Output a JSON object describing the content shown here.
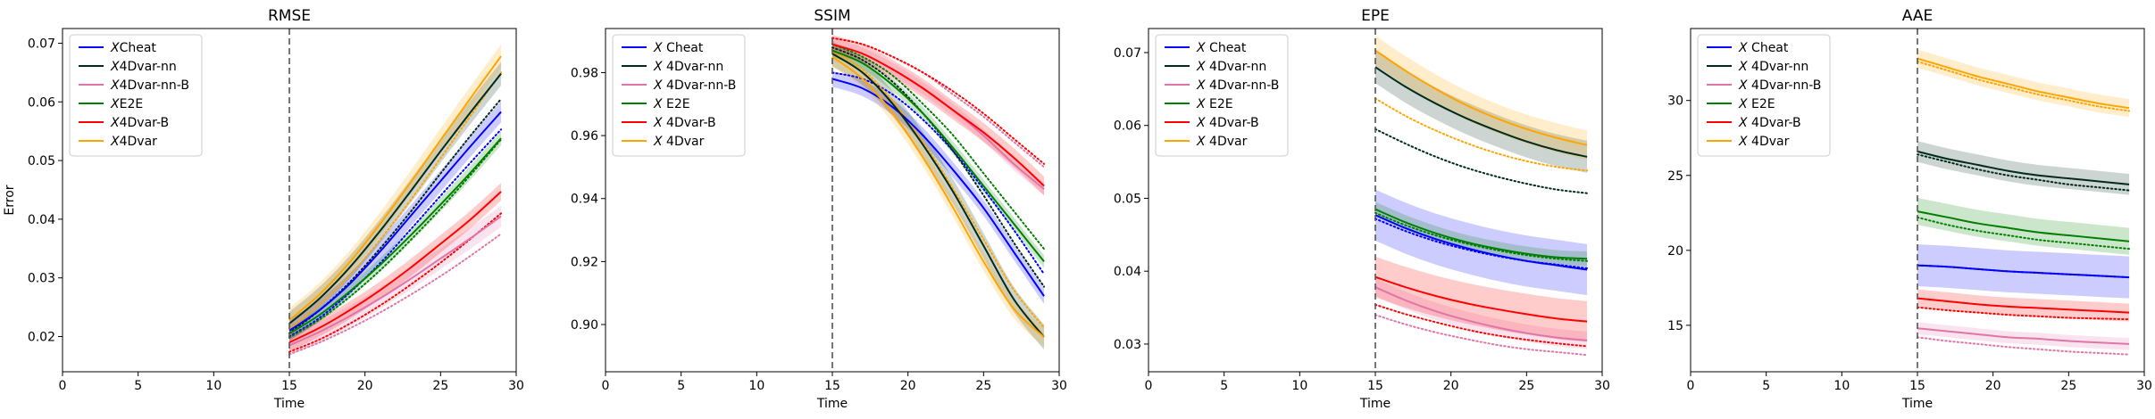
{
  "chart_data": [
    {
      "type": "line",
      "title": "RMSE",
      "xlabel": "Time",
      "ylabel": "Error",
      "xlim": [
        0,
        30
      ],
      "ylim": [
        0.014,
        0.0725
      ],
      "xticks": [
        0,
        5,
        10,
        15,
        20,
        25,
        30
      ],
      "yticks": [
        0.02,
        0.03,
        0.04,
        0.05,
        0.06,
        0.07
      ],
      "yprecision": 2,
      "vline": 15,
      "legend_position": "top-left",
      "x": [
        15,
        17,
        19,
        21,
        23,
        25,
        27,
        29
      ],
      "series": [
        {
          "name": "XCheat",
          "label_parts": [
            "X",
            "Cheat"
          ],
          "color": "#0000ff",
          "values": [
            0.021,
            0.0245,
            0.029,
            0.0345,
            0.0405,
            0.0465,
            0.0525,
            0.0583
          ],
          "band": 0.0018,
          "dotted": [
            0.02,
            0.0232,
            0.0275,
            0.0325,
            0.0382,
            0.044,
            0.0497,
            0.0553
          ]
        },
        {
          "name": "X4Dvar-nn",
          "label_parts": [
            "X",
            "4Dvar-nn"
          ],
          "color": "#002b1b",
          "values": [
            0.0222,
            0.0265,
            0.0318,
            0.038,
            0.0447,
            0.0516,
            0.0583,
            0.0648
          ],
          "band": 0.002,
          "dotted": [
            0.0206,
            0.0245,
            0.0293,
            0.035,
            0.0412,
            0.0478,
            0.0543,
            0.0605
          ]
        },
        {
          "name": "X4Dvar-nn-B",
          "label_parts": [
            "X",
            "4Dvar-nn-B"
          ],
          "color": "#e075a8",
          "values": [
            0.0185,
            0.0208,
            0.0235,
            0.0265,
            0.0298,
            0.0333,
            0.0368,
            0.0405
          ],
          "band": 0.0018,
          "dotted": [
            0.017,
            0.019,
            0.0214,
            0.0241,
            0.0271,
            0.0303,
            0.0338,
            0.0375
          ]
        },
        {
          "name": "XE2E",
          "label_parts": [
            "X",
            "E2E"
          ],
          "color": "#008000",
          "values": [
            0.0205,
            0.0237,
            0.0277,
            0.0322,
            0.0372,
            0.0425,
            0.048,
            0.0538
          ],
          "band": 0.0012,
          "dotted": [
            0.0198,
            0.0229,
            0.0268,
            0.0313,
            0.0364,
            0.0418,
            0.0476,
            0.0536
          ]
        },
        {
          "name": "X4Dvar-B",
          "label_parts": [
            "X",
            "4Dvar-B"
          ],
          "color": "#ff0000",
          "values": [
            0.019,
            0.0215,
            0.0245,
            0.0279,
            0.0317,
            0.0358,
            0.04,
            0.0447
          ],
          "band": 0.0015,
          "dotted": [
            0.0174,
            0.0195,
            0.0222,
            0.0253,
            0.0288,
            0.0326,
            0.0367,
            0.041
          ]
        },
        {
          "name": "X4Dvar",
          "label_parts": [
            "X",
            "4Dvar"
          ],
          "color": "#ffa500",
          "values": [
            0.0228,
            0.0272,
            0.0327,
            0.0392,
            0.0462,
            0.0535,
            0.0607,
            0.0678
          ],
          "band": 0.002,
          "dotted": [
            0.0213,
            0.0254,
            0.0304,
            0.0365,
            0.0432,
            0.0504,
            0.0577,
            0.065
          ]
        }
      ]
    },
    {
      "type": "line",
      "title": "SSIM",
      "xlabel": "Time",
      "ylabel": "",
      "xlim": [
        0,
        30
      ],
      "ylim": [
        0.885,
        0.994
      ],
      "xticks": [
        0,
        5,
        10,
        15,
        20,
        25,
        30
      ],
      "yticks": [
        0.9,
        0.92,
        0.94,
        0.96,
        0.98
      ],
      "yprecision": 2,
      "vline": 15,
      "legend_position": "top-left",
      "x": [
        15,
        17,
        19,
        21,
        23,
        25,
        27,
        29
      ],
      "series": [
        {
          "name": "X Cheat",
          "label_parts": [
            "X",
            " Cheat"
          ],
          "color": "#0000ff",
          "values": [
            0.978,
            0.975,
            0.969,
            0.96,
            0.949,
            0.937,
            0.923,
            0.909
          ],
          "band": 0.0025,
          "dotted": [
            0.98,
            0.978,
            0.973,
            0.965,
            0.955,
            0.943,
            0.93,
            0.916
          ]
        },
        {
          "name": "X 4Dvar-nn",
          "label_parts": [
            "X",
            " 4Dvar-nn"
          ],
          "color": "#002b1b",
          "values": [
            0.986,
            0.98,
            0.97,
            0.957,
            0.942,
            0.925,
            0.908,
            0.896
          ],
          "band": 0.004,
          "dotted": [
            0.988,
            0.984,
            0.977,
            0.967,
            0.955,
            0.941,
            0.926,
            0.912
          ]
        },
        {
          "name": "X 4Dvar-nn-B",
          "label_parts": [
            "X",
            " 4Dvar-nn-B"
          ],
          "color": "#e075a8",
          "values": [
            0.989,
            0.986,
            0.981,
            0.975,
            0.968,
            0.96,
            0.951,
            0.943
          ],
          "band": 0.002,
          "dotted": [
            0.991,
            0.989,
            0.985,
            0.98,
            0.973,
            0.966,
            0.958,
            0.95
          ]
        },
        {
          "name": "X E2E",
          "label_parts": [
            "X",
            " E2E"
          ],
          "color": "#008000",
          "values": [
            0.987,
            0.983,
            0.976,
            0.967,
            0.956,
            0.944,
            0.932,
            0.92
          ],
          "band": 0.002,
          "dotted": [
            0.989,
            0.985,
            0.979,
            0.97,
            0.96,
            0.948,
            0.936,
            0.924
          ]
        },
        {
          "name": "X 4Dvar-B",
          "label_parts": [
            "X",
            " 4Dvar-B"
          ],
          "color": "#ff0000",
          "values": [
            0.989,
            0.986,
            0.981,
            0.975,
            0.968,
            0.961,
            0.953,
            0.944
          ],
          "band": 0.003,
          "dotted": [
            0.991,
            0.989,
            0.985,
            0.98,
            0.974,
            0.967,
            0.959,
            0.951
          ]
        },
        {
          "name": "X 4Dvar",
          "label_parts": [
            "X",
            " 4Dvar"
          ],
          "color": "#ffa500",
          "values": [
            0.985,
            0.978,
            0.967,
            0.953,
            0.937,
            0.92,
            0.905,
            0.896
          ],
          "band": 0.003,
          "dotted": [
            0.987,
            0.981,
            0.971,
            0.958,
            0.943,
            0.927,
            0.911,
            0.899
          ]
        }
      ]
    },
    {
      "type": "line",
      "title": "EPE",
      "xlabel": "Time",
      "ylabel": "",
      "xlim": [
        0,
        30
      ],
      "ylim": [
        0.0262,
        0.0733
      ],
      "xticks": [
        0,
        5,
        10,
        15,
        20,
        25,
        30
      ],
      "yticks": [
        0.03,
        0.04,
        0.05,
        0.06,
        0.07
      ],
      "yprecision": 2,
      "vline": 15,
      "legend_position": "top-left",
      "x": [
        15,
        17,
        19,
        21,
        23,
        25,
        27,
        29
      ],
      "series": [
        {
          "name": "X Cheat",
          "label_parts": [
            "X",
            " Cheat"
          ],
          "color": "#0000ff",
          "values": [
            0.0477,
            0.0459,
            0.0444,
            0.0432,
            0.0422,
            0.0414,
            0.0408,
            0.0402
          ],
          "band": 0.0035,
          "dotted": [
            0.0472,
            0.0455,
            0.0441,
            0.043,
            0.0421,
            0.0414,
            0.0409,
            0.0404
          ]
        },
        {
          "name": "X 4Dvar-nn",
          "label_parts": [
            "X",
            " 4Dvar-nn"
          ],
          "color": "#002b1b",
          "values": [
            0.068,
            0.0653,
            0.063,
            0.061,
            0.0593,
            0.0578,
            0.0566,
            0.0557
          ],
          "band": 0.0022,
          "dotted": [
            0.0595,
            0.0575,
            0.0557,
            0.0542,
            0.053,
            0.052,
            0.0512,
            0.0507
          ]
        },
        {
          "name": "X 4Dvar-nn-B",
          "label_parts": [
            "X",
            " 4Dvar-nn-B"
          ],
          "color": "#e075a8",
          "values": [
            0.0378,
            0.036,
            0.0345,
            0.0333,
            0.0323,
            0.0315,
            0.0309,
            0.0305
          ],
          "band": 0.0012,
          "dotted": [
            0.034,
            0.0327,
            0.0316,
            0.0307,
            0.0299,
            0.0293,
            0.0289,
            0.0285
          ]
        },
        {
          "name": "X E2E",
          "label_parts": [
            "X",
            " E2E"
          ],
          "color": "#008000",
          "values": [
            0.0485,
            0.0467,
            0.0452,
            0.044,
            0.0431,
            0.0424,
            0.0419,
            0.0417
          ],
          "band": 0.001,
          "dotted": [
            0.048,
            0.0463,
            0.0449,
            0.0438,
            0.0429,
            0.0422,
            0.0417,
            0.0414
          ]
        },
        {
          "name": "X 4Dvar-B",
          "label_parts": [
            "X",
            " 4Dvar-B"
          ],
          "color": "#ff0000",
          "values": [
            0.0392,
            0.0378,
            0.0366,
            0.0356,
            0.0348,
            0.0341,
            0.0335,
            0.0331
          ],
          "band": 0.0028,
          "dotted": [
            0.0354,
            0.0341,
            0.033,
            0.032,
            0.0312,
            0.0306,
            0.0301,
            0.0297
          ]
        },
        {
          "name": "X 4Dvar",
          "label_parts": [
            "X",
            " 4Dvar"
          ],
          "color": "#ffa500",
          "values": [
            0.0703,
            0.0675,
            0.065,
            0.0628,
            0.061,
            0.0595,
            0.0583,
            0.0573
          ],
          "band": 0.002,
          "dotted": [
            0.0637,
            0.0613,
            0.0593,
            0.0576,
            0.0562,
            0.0551,
            0.0543,
            0.0538
          ]
        }
      ]
    },
    {
      "type": "line",
      "title": "AAE",
      "xlabel": "Time",
      "ylabel": "",
      "xlim": [
        0,
        30
      ],
      "ylim": [
        11.9,
        34.8
      ],
      "xticks": [
        0,
        5,
        10,
        15,
        20,
        25,
        30
      ],
      "yticks": [
        15,
        20,
        25,
        30
      ],
      "yprecision": 0,
      "vline": 15,
      "legend_position": "top-left",
      "x": [
        15,
        17,
        19,
        21,
        23,
        25,
        27,
        29
      ],
      "series": [
        {
          "name": "X Cheat",
          "label_parts": [
            "X",
            " Cheat"
          ],
          "color": "#0000ff",
          "values": [
            19.0,
            18.9,
            18.75,
            18.6,
            18.5,
            18.4,
            18.3,
            18.2
          ],
          "band": 1.4,
          "dotted": [
            19.0,
            18.9,
            18.75,
            18.6,
            18.5,
            18.4,
            18.3,
            18.2
          ]
        },
        {
          "name": "X 4Dvar-nn",
          "label_parts": [
            "X",
            " 4Dvar-nn"
          ],
          "color": "#002b1b",
          "values": [
            26.6,
            26.1,
            25.7,
            25.3,
            25.0,
            24.8,
            24.6,
            24.4
          ],
          "band": 0.7,
          "dotted": [
            26.4,
            25.9,
            25.4,
            25.0,
            24.7,
            24.4,
            24.2,
            24.0
          ]
        },
        {
          "name": "X 4Dvar-nn-B",
          "label_parts": [
            "X",
            " 4Dvar-nn-B"
          ],
          "color": "#e075a8",
          "values": [
            14.8,
            14.6,
            14.4,
            14.2,
            14.1,
            13.95,
            13.85,
            13.75
          ],
          "band": 0.4,
          "dotted": [
            14.2,
            13.95,
            13.75,
            13.55,
            13.4,
            13.25,
            13.15,
            13.05
          ]
        },
        {
          "name": "X E2E",
          "label_parts": [
            "X",
            " E2E"
          ],
          "color": "#008000",
          "values": [
            22.6,
            22.2,
            21.8,
            21.5,
            21.2,
            21.0,
            20.8,
            20.6
          ],
          "band": 0.9,
          "dotted": [
            22.2,
            21.7,
            21.3,
            21.0,
            20.7,
            20.5,
            20.3,
            20.1
          ]
        },
        {
          "name": "X 4Dvar-B",
          "label_parts": [
            "X",
            " 4Dvar-B"
          ],
          "color": "#ff0000",
          "values": [
            16.8,
            16.6,
            16.4,
            16.25,
            16.15,
            16.05,
            15.95,
            15.85
          ],
          "band": 0.6,
          "dotted": [
            16.2,
            16.0,
            15.85,
            15.7,
            15.6,
            15.5,
            15.45,
            15.4
          ]
        },
        {
          "name": "X 4Dvar",
          "label_parts": [
            "X",
            " 4Dvar"
          ],
          "color": "#ffa500",
          "values": [
            32.8,
            32.2,
            31.6,
            31.1,
            30.6,
            30.2,
            29.8,
            29.5
          ],
          "band": 0.6,
          "dotted": [
            32.6,
            32.0,
            31.4,
            30.9,
            30.4,
            30.0,
            29.6,
            29.3
          ]
        }
      ]
    }
  ]
}
